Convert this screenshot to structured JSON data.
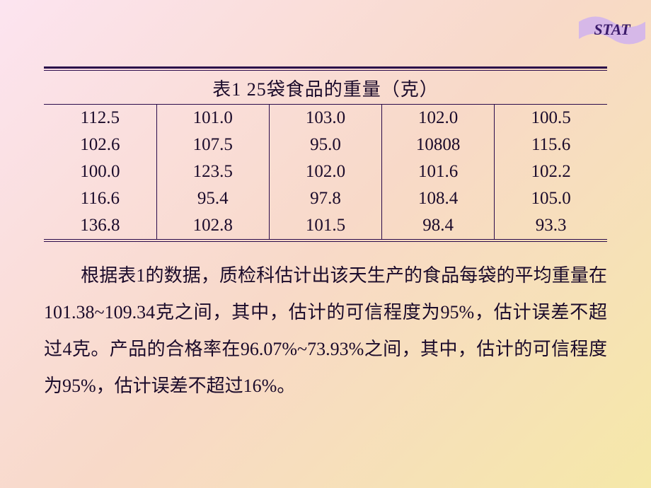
{
  "badge": {
    "label": "STAT",
    "fill": "#d6b8e8",
    "text_color": "#3a1a6a"
  },
  "table": {
    "caption": "表1  25袋食品的重量（克）",
    "rows": [
      [
        "112.5",
        "101.0",
        "103.0",
        "102.0",
        "100.5"
      ],
      [
        "102.6",
        "107.5",
        "95.0",
        "10808",
        "115.6"
      ],
      [
        "100.0",
        "123.5",
        "102.0",
        "101.6",
        "102.2"
      ],
      [
        "116.6",
        "95.4",
        "97.8",
        "108.4",
        "105.0"
      ],
      [
        "136.8",
        "102.8",
        "101.5",
        "98.4",
        "93.3"
      ]
    ],
    "rule_color": "#2a0a4a",
    "cell_fontsize": 25,
    "caption_fontsize": 26
  },
  "paragraph": {
    "text": "根据表1的数据，质检科估计出该天生产的食品每袋的平均重量在101.38~109.34克之间，其中，估计的可信程度为95%，估计误差不超过4克。产品的合格率在96.07%~73.93%之间，其中，估计的可信程度为95%，估计误差不超过16%。",
    "fontsize": 26,
    "line_height": 2.0
  },
  "colors": {
    "bg_gradient_start": "#fce4f0",
    "bg_gradient_mid": "#f8d9c8",
    "bg_gradient_end": "#f5e8a8",
    "text_color": "#1a0a2a"
  }
}
